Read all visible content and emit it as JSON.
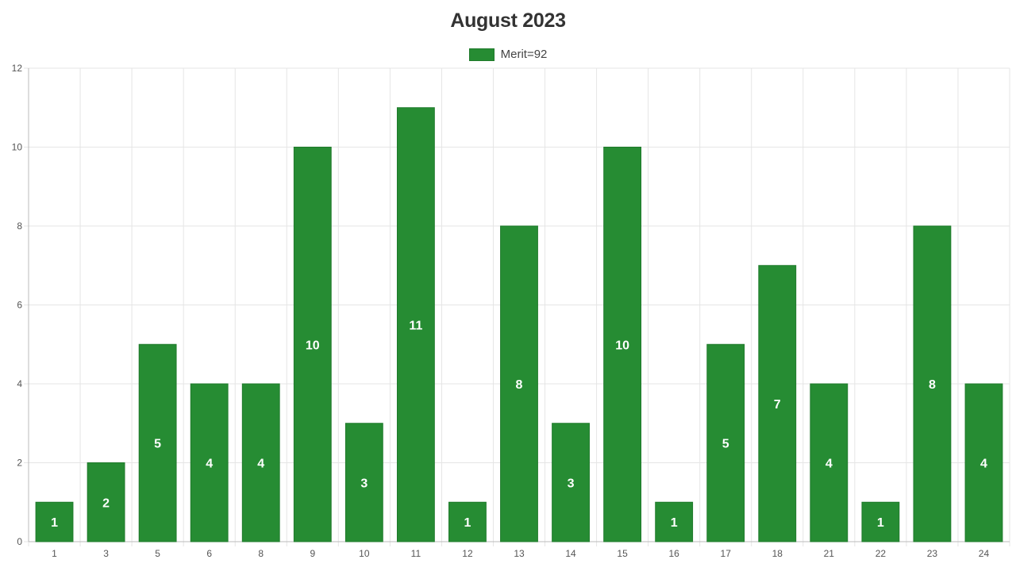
{
  "chart_data": {
    "type": "bar",
    "title": "August 2023",
    "xlabel": "",
    "ylabel": "",
    "categories": [
      "1",
      "3",
      "5",
      "6",
      "8",
      "9",
      "10",
      "11",
      "12",
      "13",
      "14",
      "15",
      "16",
      "17",
      "18",
      "21",
      "22",
      "23",
      "24"
    ],
    "series": [
      {
        "name": "Merit=92",
        "values": [
          1,
          2,
          5,
          4,
          4,
          10,
          3,
          11,
          1,
          8,
          3,
          10,
          1,
          5,
          7,
          4,
          1,
          8,
          4
        ]
      }
    ],
    "ylim": [
      0,
      12
    ],
    "yticks": [
      "0",
      "2",
      "4",
      "6",
      "8",
      "10",
      "12"
    ],
    "grid": true,
    "legend_position": "top-center",
    "data_labels": true,
    "colors": {
      "bar": "#268c33",
      "bar_border": "#1f7a2b",
      "grid": "#e5e5e5",
      "axis": "#bbbbbb"
    }
  }
}
